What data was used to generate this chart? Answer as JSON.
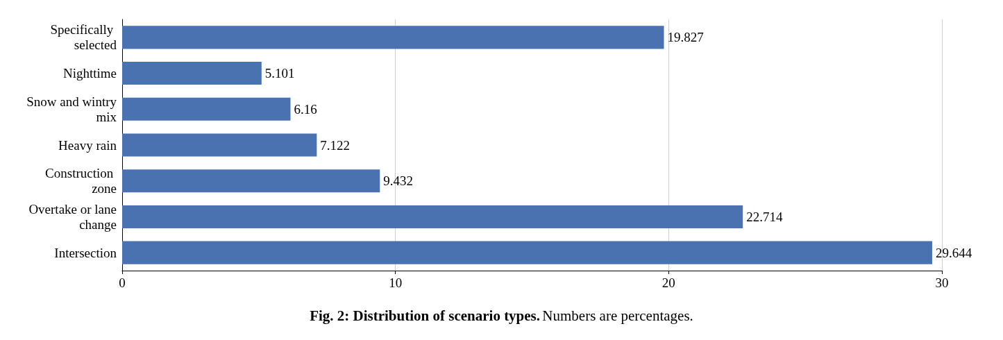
{
  "chart_data": {
    "type": "bar",
    "orientation": "horizontal",
    "title": "Fig. 2: Distribution of scenario types.",
    "subtitle": "Numbers are percentages.",
    "categories": [
      "Specifically selected",
      "Nighttime",
      "Snow and wintry mix",
      "Heavy rain",
      "Construction zone",
      "Overtake or lane change",
      "Intersection"
    ],
    "values": [
      19.827,
      5.101,
      6.16,
      7.122,
      9.432,
      22.714,
      29.644
    ],
    "color": "#4a72b0",
    "xlim": [
      0,
      30
    ],
    "xticks": [
      0,
      10,
      20,
      30
    ],
    "grid": "x",
    "data_labels": true
  }
}
